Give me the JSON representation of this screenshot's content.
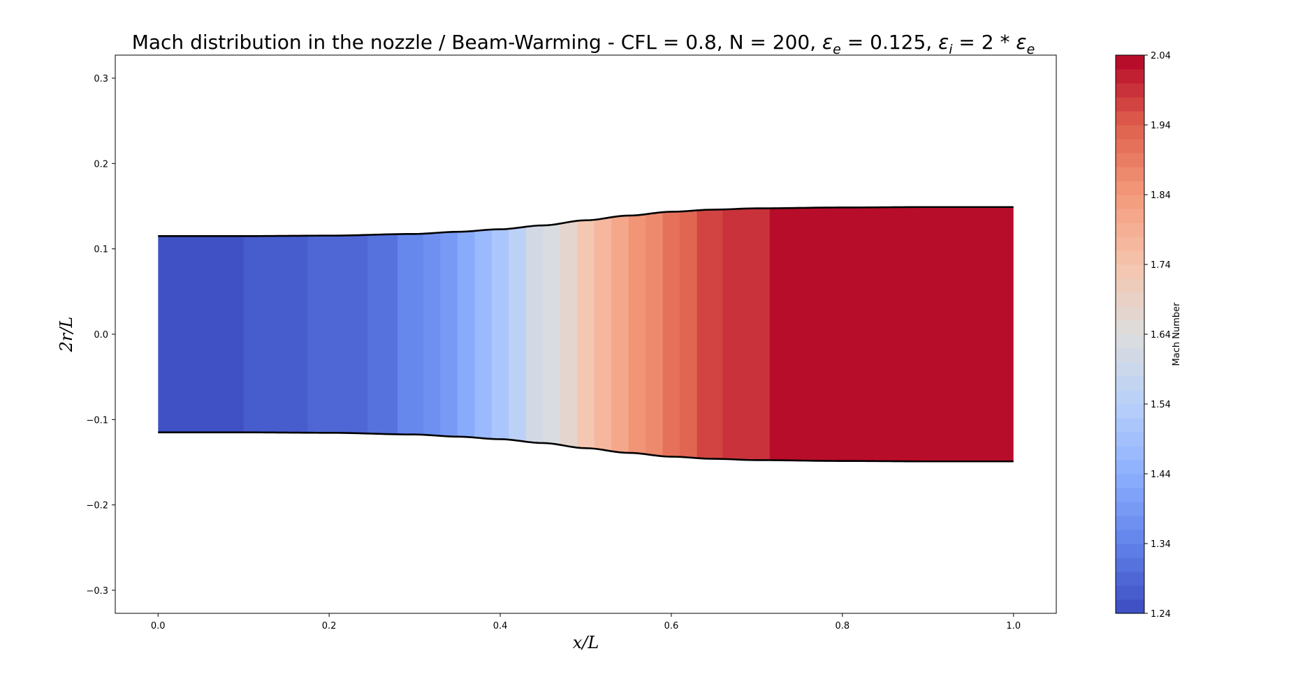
{
  "chart_data": {
    "type": "heatmap",
    "title": {
      "prefix": "Mach distribution in the nozzle / Beam-Warming - CFL = 0.8, N = 200, ",
      "eps_e_label": "ε",
      "eps_e_sub": "e",
      "eps_e_value": " = 0.125, ",
      "eps_i_label": "ε",
      "eps_i_sub": "i",
      "eps_i_rhs": " = 2 * ",
      "eps_i_rhs_label": "ε",
      "eps_i_rhs_sub": "e"
    },
    "xlabel": "x/L",
    "ylabel": "2r/L",
    "colorbar_label": "Mach Number",
    "xlim": [
      -0.05,
      1.05
    ],
    "ylim": [
      -0.327,
      0.327
    ],
    "xticks": [
      0.0,
      0.2,
      0.4,
      0.6,
      0.8,
      1.0
    ],
    "xtick_labels": [
      "0.0",
      "0.2",
      "0.4",
      "0.6",
      "0.8",
      "1.0"
    ],
    "yticks": [
      0.3,
      0.2,
      0.1,
      0.0,
      -0.1,
      -0.2,
      -0.3
    ],
    "ytick_labels": [
      "0.3",
      "0.2",
      "0.1",
      "0.0",
      "−0.1",
      "−0.2",
      "−0.3"
    ],
    "colorbar_range": [
      1.24,
      2.04
    ],
    "colorbar_ticks": [
      2.04,
      1.94,
      1.84,
      1.74,
      1.64,
      1.54,
      1.44,
      1.34,
      1.24
    ],
    "colorbar_tick_labels": [
      "2.04",
      "1.94",
      "1.84",
      "1.74",
      "1.64",
      "1.54",
      "1.44",
      "1.34",
      "1.24"
    ],
    "colorbar_levels": 40,
    "colormap": "coolwarm",
    "nozzle_wall": {
      "x": [
        0.0,
        0.1,
        0.2,
        0.3,
        0.35,
        0.4,
        0.45,
        0.5,
        0.55,
        0.6,
        0.65,
        0.7,
        0.8,
        0.9,
        1.0
      ],
      "r": [
        0.115,
        0.115,
        0.1155,
        0.1175,
        0.12,
        0.123,
        0.1275,
        0.1335,
        0.139,
        0.1435,
        0.146,
        0.1475,
        0.1485,
        0.149,
        0.149
      ]
    },
    "mach_along_x": {
      "x": [
        0.0,
        0.1,
        0.175,
        0.245,
        0.28,
        0.31,
        0.33,
        0.35,
        0.37,
        0.39,
        0.41,
        0.43,
        0.45,
        0.47,
        0.49,
        0.51,
        0.53,
        0.55,
        0.57,
        0.59,
        0.61,
        0.63,
        0.66,
        0.715,
        0.8,
        0.9,
        1.0
      ],
      "mach": [
        1.25,
        1.26,
        1.28,
        1.31,
        1.34,
        1.37,
        1.4,
        1.43,
        1.47,
        1.51,
        1.55,
        1.6,
        1.64,
        1.68,
        1.72,
        1.76,
        1.8,
        1.84,
        1.88,
        1.91,
        1.94,
        1.96,
        1.99,
        2.03,
        2.04,
        2.04,
        2.04
      ]
    }
  }
}
